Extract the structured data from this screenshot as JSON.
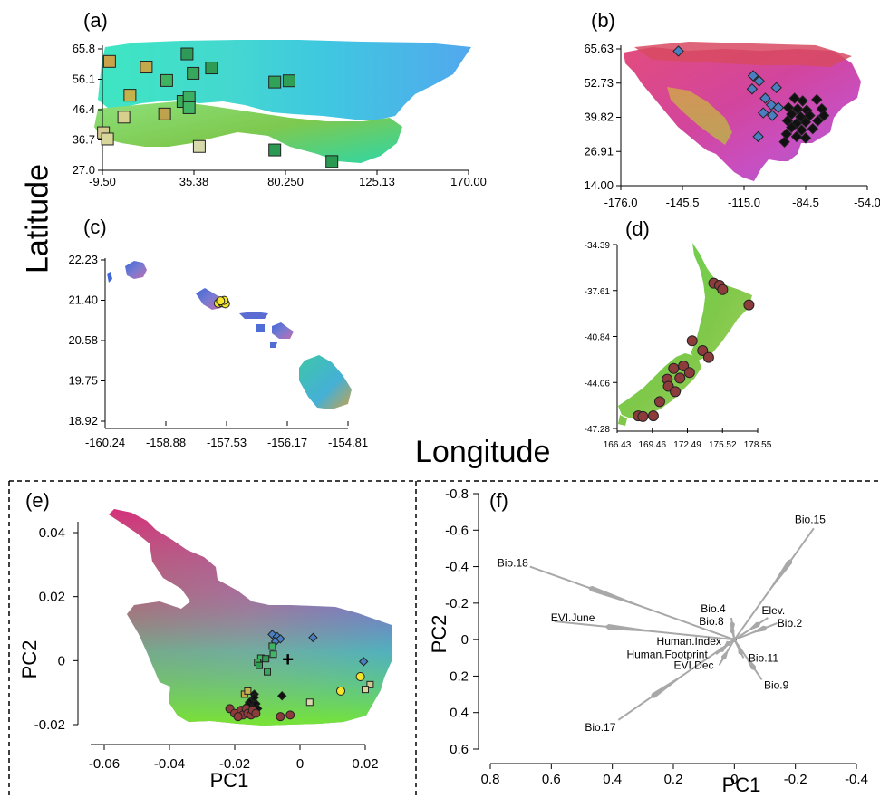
{
  "figure": {
    "shared_ylabel": "Latitude",
    "shared_xlabel": "Longitude"
  },
  "chart_data": [
    {
      "id": "a",
      "panel_label": "(a)",
      "type": "scatter",
      "map_region": "Eurasia",
      "xlim": [
        -9.5,
        170.0
      ],
      "ylim": [
        27.0,
        65.8
      ],
      "xticks": [
        "-9.50",
        "35.38",
        "80.250",
        "125.13",
        "170.00"
      ],
      "yticks": [
        "65.8",
        "56.1",
        "46.4",
        "36.7",
        "27.0"
      ],
      "marker": "square",
      "points": [
        {
          "x": -6.0,
          "y": 61.8,
          "color": "#c9a24a"
        },
        {
          "x": 4.0,
          "y": 51.0,
          "color": "#c4b24a"
        },
        {
          "x": 12.0,
          "y": 60.0,
          "color": "#c4a84c"
        },
        {
          "x": 1.0,
          "y": 44.0,
          "color": "#d6cf8e"
        },
        {
          "x": -9.0,
          "y": 39.0,
          "color": "#d2ca90"
        },
        {
          "x": -7.0,
          "y": 37.0,
          "color": "#d8d69a"
        },
        {
          "x": 21.0,
          "y": 45.0,
          "color": "#bea24e"
        },
        {
          "x": 22.0,
          "y": 55.7,
          "color": "#3fb35f"
        },
        {
          "x": 30.0,
          "y": 49.0,
          "color": "#3aaf5a"
        },
        {
          "x": 32.0,
          "y": 64.2,
          "color": "#2f9a57"
        },
        {
          "x": 33.0,
          "y": 50.3,
          "color": "#3bb062"
        },
        {
          "x": 33.0,
          "y": 47.0,
          "color": "#42b465"
        },
        {
          "x": 35.0,
          "y": 58.0,
          "color": "#36a85c"
        },
        {
          "x": 44.0,
          "y": 59.7,
          "color": "#2f9c55"
        },
        {
          "x": 38.0,
          "y": 34.6,
          "color": "#d8d9aa"
        },
        {
          "x": 75.0,
          "y": 55.2,
          "color": "#31a358"
        },
        {
          "x": 82.0,
          "y": 55.6,
          "color": "#2f9f56"
        },
        {
          "x": 75.0,
          "y": 33.5,
          "color": "#2a9a52"
        },
        {
          "x": 103.0,
          "y": 29.8,
          "color": "#2a9a52"
        }
      ]
    },
    {
      "id": "b",
      "panel_label": "(b)",
      "type": "scatter",
      "map_region": "North America",
      "xlim": [
        -176.0,
        -54.0
      ],
      "ylim": [
        14.0,
        65.63
      ],
      "xticks": [
        "-176.0",
        "-145.5",
        "-115.0",
        "-84.5",
        "-54.0"
      ],
      "yticks": [
        "65.63",
        "52.73",
        "39.82",
        "26.91",
        "14.00"
      ],
      "marker": "diamond",
      "points": [
        {
          "x": -147.5,
          "y": 64.8,
          "color": "#4a7fc1"
        },
        {
          "x": -110.5,
          "y": 55.5,
          "color": "#4a7fc1"
        },
        {
          "x": -107.5,
          "y": 53.5,
          "color": "#4a7fc1"
        },
        {
          "x": -111.0,
          "y": 50.5,
          "color": "#4a7fc1"
        },
        {
          "x": -99.0,
          "y": 51.0,
          "color": "#4a7fc1"
        },
        {
          "x": -104.5,
          "y": 47.0,
          "color": "#4a7fc1"
        },
        {
          "x": -101.5,
          "y": 44.5,
          "color": "#4a7fc1"
        },
        {
          "x": -98.0,
          "y": 43.5,
          "color": "#4a7fc1"
        },
        {
          "x": -105.5,
          "y": 41.5,
          "color": "#4a7fc1"
        },
        {
          "x": -101.0,
          "y": 40.5,
          "color": "#4a7fc1"
        },
        {
          "x": -108.0,
          "y": 32.5,
          "color": "#4a7fc1"
        },
        {
          "x": -90.0,
          "y": 47.0,
          "color": "#111111"
        },
        {
          "x": -86.0,
          "y": 46.0,
          "color": "#111111"
        },
        {
          "x": -79.0,
          "y": 46.5,
          "color": "#111111"
        },
        {
          "x": -93.0,
          "y": 43.5,
          "color": "#111111"
        },
        {
          "x": -88.5,
          "y": 43.0,
          "color": "#111111"
        },
        {
          "x": -84.0,
          "y": 42.5,
          "color": "#111111"
        },
        {
          "x": -76.5,
          "y": 43.0,
          "color": "#111111"
        },
        {
          "x": -91.5,
          "y": 41.0,
          "color": "#111111"
        },
        {
          "x": -87.0,
          "y": 40.0,
          "color": "#111111"
        },
        {
          "x": -82.5,
          "y": 40.5,
          "color": "#111111"
        },
        {
          "x": -75.5,
          "y": 40.5,
          "color": "#111111"
        },
        {
          "x": -93.5,
          "y": 38.5,
          "color": "#111111"
        },
        {
          "x": -89.0,
          "y": 37.5,
          "color": "#111111"
        },
        {
          "x": -84.5,
          "y": 38.0,
          "color": "#111111"
        },
        {
          "x": -78.5,
          "y": 38.5,
          "color": "#111111"
        },
        {
          "x": -91.5,
          "y": 36.0,
          "color": "#111111"
        },
        {
          "x": -86.5,
          "y": 35.0,
          "color": "#111111"
        },
        {
          "x": -81.0,
          "y": 35.5,
          "color": "#111111"
        },
        {
          "x": -94.0,
          "y": 33.5,
          "color": "#111111"
        },
        {
          "x": -89.0,
          "y": 32.5,
          "color": "#111111"
        },
        {
          "x": -84.5,
          "y": 32.0,
          "color": "#111111"
        },
        {
          "x": -95.0,
          "y": 30.5,
          "color": "#111111"
        }
      ]
    },
    {
      "id": "c",
      "panel_label": "(c)",
      "type": "scatter",
      "map_region": "Hawaii",
      "xlim": [
        -160.24,
        -154.81
      ],
      "ylim": [
        18.92,
        22.23
      ],
      "xticks": [
        "-160.24",
        "-158.88",
        "-157.53",
        "-156.17",
        "-154.81"
      ],
      "yticks": [
        "22.23",
        "21.40",
        "20.58",
        "19.75",
        "18.92"
      ],
      "marker": "circle",
      "points": [
        {
          "x": -157.71,
          "y": 21.34,
          "color": "#f5e62a"
        },
        {
          "x": -157.62,
          "y": 21.35,
          "color": "#f5e62a"
        },
        {
          "x": -157.55,
          "y": 21.33,
          "color": "#f5e62a"
        },
        {
          "x": -157.58,
          "y": 21.4,
          "color": "#f5e62a"
        },
        {
          "x": -157.66,
          "y": 21.39,
          "color": "#f5e62a"
        }
      ]
    },
    {
      "id": "d",
      "panel_label": "(d)",
      "type": "scatter",
      "map_region": "New Zealand",
      "xlim": [
        166.43,
        178.55
      ],
      "ylim": [
        -47.28,
        -34.39
      ],
      "xticks": [
        "166.43",
        "169.46",
        "172.49",
        "175.52",
        "178.55"
      ],
      "yticks": [
        "-34.39",
        "-37.61",
        "-40.84",
        "-44.06",
        "-47.28"
      ],
      "marker": "circle",
      "points": [
        {
          "x": 174.76,
          "y": -37.1,
          "color": "#8e3b3b"
        },
        {
          "x": 175.26,
          "y": -37.25,
          "color": "#8e3b3b"
        },
        {
          "x": 175.53,
          "y": -37.55,
          "color": "#8e3b3b"
        },
        {
          "x": 177.8,
          "y": -38.62,
          "color": "#8e3b3b"
        },
        {
          "x": 172.9,
          "y": -41.14,
          "color": "#8e3b3b"
        },
        {
          "x": 173.8,
          "y": -41.82,
          "color": "#8e3b3b"
        },
        {
          "x": 174.32,
          "y": -42.3,
          "color": "#8e3b3b"
        },
        {
          "x": 171.3,
          "y": -43.07,
          "color": "#8e3b3b"
        },
        {
          "x": 172.15,
          "y": -42.9,
          "color": "#8e3b3b"
        },
        {
          "x": 172.67,
          "y": -43.36,
          "color": "#8e3b3b"
        },
        {
          "x": 170.75,
          "y": -43.83,
          "color": "#8e3b3b"
        },
        {
          "x": 171.84,
          "y": -43.75,
          "color": "#8e3b3b"
        },
        {
          "x": 170.85,
          "y": -44.33,
          "color": "#8e3b3b"
        },
        {
          "x": 171.44,
          "y": -44.7,
          "color": "#8e3b3b"
        },
        {
          "x": 170.1,
          "y": -45.4,
          "color": "#8e3b3b"
        },
        {
          "x": 168.25,
          "y": -46.4,
          "color": "#8e3b3b"
        },
        {
          "x": 168.65,
          "y": -46.45,
          "color": "#8e3b3b"
        },
        {
          "x": 169.55,
          "y": -46.4,
          "color": "#8e3b3b"
        }
      ]
    },
    {
      "id": "e",
      "panel_label": "(e)",
      "type": "scatter",
      "xlabel": "PC1",
      "ylabel": "PC2",
      "xlim": [
        -0.062,
        0.03
      ],
      "ylim": [
        -0.022,
        0.046
      ],
      "xticks": [
        "-0.06",
        "-0.04",
        "-0.02",
        "0",
        "0.02"
      ],
      "yticks": [
        "0.04",
        "0.02",
        "0",
        "-0.02"
      ],
      "centroid_marker": "+",
      "centroid": {
        "x": -0.0037,
        "y": 0.0002
      },
      "points": [
        {
          "x": -0.0085,
          "y": 0.0082,
          "shape": "diamond",
          "color": "#4a7fc1"
        },
        {
          "x": -0.007,
          "y": 0.0075,
          "shape": "diamond",
          "color": "#4a7fc1"
        },
        {
          "x": -0.0075,
          "y": 0.006,
          "shape": "diamond",
          "color": "#4a7fc1"
        },
        {
          "x": -0.006,
          "y": 0.0068,
          "shape": "diamond",
          "color": "#4a7fc1"
        },
        {
          "x": 0.004,
          "y": 0.0072,
          "shape": "diamond",
          "color": "#4a7fc1"
        },
        {
          "x": 0.0195,
          "y": -0.0003,
          "shape": "diamond",
          "color": "#4a7fc1"
        },
        {
          "x": -0.012,
          "y": 0.0008,
          "shape": "square",
          "color": "#3fb35f"
        },
        {
          "x": -0.0085,
          "y": 0.0045,
          "shape": "square",
          "color": "#3fb35f"
        },
        {
          "x": -0.013,
          "y": -0.0005,
          "shape": "square",
          "color": "#3aaf5a"
        },
        {
          "x": -0.0105,
          "y": 0.0006,
          "shape": "square",
          "color": "#2f9a57"
        },
        {
          "x": -0.0082,
          "y": 0.002,
          "shape": "square",
          "color": "#42b465"
        },
        {
          "x": -0.01,
          "y": -0.0035,
          "shape": "square",
          "color": "#36a85c"
        },
        {
          "x": -0.0125,
          "y": -0.0015,
          "shape": "square",
          "color": "#2f9c55"
        },
        {
          "x": -0.017,
          "y": -0.0105,
          "shape": "square",
          "color": "#c9a24a"
        },
        {
          "x": -0.016,
          "y": -0.0095,
          "shape": "square",
          "color": "#c4b24a"
        },
        {
          "x": 0.003,
          "y": -0.013,
          "shape": "square",
          "color": "#d8d9aa"
        },
        {
          "x": 0.0215,
          "y": -0.0075,
          "shape": "square",
          "color": "#d2ca90"
        },
        {
          "x": 0.02,
          "y": -0.009,
          "shape": "square",
          "color": "#d8d69a"
        },
        {
          "x": -0.0055,
          "y": -0.011,
          "shape": "diamond",
          "color": "#111111"
        },
        {
          "x": -0.014,
          "y": -0.0105,
          "shape": "diamond",
          "color": "#111111"
        },
        {
          "x": -0.0145,
          "y": -0.0125,
          "shape": "diamond",
          "color": "#111111"
        },
        {
          "x": -0.0135,
          "y": -0.0135,
          "shape": "diamond",
          "color": "#111111"
        },
        {
          "x": -0.015,
          "y": -0.0145,
          "shape": "diamond",
          "color": "#111111"
        },
        {
          "x": -0.013,
          "y": -0.015,
          "shape": "diamond",
          "color": "#111111"
        },
        {
          "x": -0.0155,
          "y": -0.013,
          "shape": "diamond",
          "color": "#111111"
        },
        {
          "x": -0.0145,
          "y": -0.016,
          "shape": "diamond",
          "color": "#111111"
        },
        {
          "x": -0.016,
          "y": -0.014,
          "shape": "diamond",
          "color": "#111111"
        },
        {
          "x": -0.014,
          "y": -0.0115,
          "shape": "diamond",
          "color": "#111111"
        },
        {
          "x": 0.0185,
          "y": -0.005,
          "shape": "circle",
          "color": "#f5e62a"
        },
        {
          "x": 0.0125,
          "y": -0.0095,
          "shape": "circle",
          "color": "#f5e62a"
        },
        {
          "x": -0.0215,
          "y": -0.015,
          "shape": "circle",
          "color": "#8e3b3b"
        },
        {
          "x": -0.02,
          "y": -0.0165,
          "shape": "circle",
          "color": "#8e3b3b"
        },
        {
          "x": -0.018,
          "y": -0.0155,
          "shape": "circle",
          "color": "#8e3b3b"
        },
        {
          "x": -0.0175,
          "y": -0.017,
          "shape": "circle",
          "color": "#8e3b3b"
        },
        {
          "x": -0.0165,
          "y": -0.015,
          "shape": "circle",
          "color": "#8e3b3b"
        },
        {
          "x": -0.016,
          "y": -0.0165,
          "shape": "circle",
          "color": "#8e3b3b"
        },
        {
          "x": -0.015,
          "y": -0.017,
          "shape": "circle",
          "color": "#8e3b3b"
        },
        {
          "x": -0.0145,
          "y": -0.0155,
          "shape": "circle",
          "color": "#8e3b3b"
        },
        {
          "x": -0.019,
          "y": -0.0175,
          "shape": "circle",
          "color": "#8e3b3b"
        },
        {
          "x": -0.0135,
          "y": -0.0165,
          "shape": "circle",
          "color": "#8e3b3b"
        },
        {
          "x": -0.006,
          "y": -0.0175,
          "shape": "circle",
          "color": "#8e3b3b"
        },
        {
          "x": -0.003,
          "y": -0.017,
          "shape": "circle",
          "color": "#8e3b3b"
        }
      ]
    },
    {
      "id": "f",
      "panel_label": "(f)",
      "type": "biplot",
      "xlabel": "PC1",
      "ylabel": "PC2",
      "xlim": [
        0.8,
        -0.4
      ],
      "ylim": [
        -0.8,
        0.6
      ],
      "x_reversed": true,
      "y_reversed": true,
      "xticks": [
        "0.8",
        "0.6",
        "0.4",
        "0.2",
        "0",
        "-0.2",
        "-0.4"
      ],
      "yticks": [
        "-0.8",
        "-0.6",
        "-0.4",
        "-0.2",
        "0",
        "0.2",
        "0.4",
        "0.6"
      ],
      "vectors": [
        {
          "label": "Bio.15",
          "x": -0.26,
          "y": -0.61
        },
        {
          "label": "Bio.18",
          "x": 0.67,
          "y": -0.4
        },
        {
          "label": "EVI.June",
          "x": 0.59,
          "y": -0.1
        },
        {
          "label": "Bio.4",
          "x": 0.01,
          "y": -0.12
        },
        {
          "label": "Elev.",
          "x": -0.11,
          "y": -0.12
        },
        {
          "label": "Bio.8",
          "x": 0.01,
          "y": -0.07
        },
        {
          "label": "Bio.2",
          "x": -0.14,
          "y": -0.09
        },
        {
          "label": "Human.Index",
          "x": 0.03,
          "y": 0.03
        },
        {
          "label": "Human.Footprint",
          "x": 0.06,
          "y": 0.08
        },
        {
          "label": "Bio.11",
          "x": -0.03,
          "y": 0.1
        },
        {
          "label": "EVI.Dec",
          "x": 0.05,
          "y": 0.14
        },
        {
          "label": "Bio.9",
          "x": -0.09,
          "y": 0.22
        },
        {
          "label": "Bio.17",
          "x": 0.38,
          "y": 0.44
        }
      ]
    }
  ]
}
